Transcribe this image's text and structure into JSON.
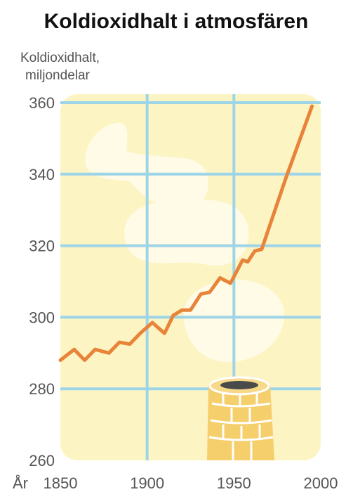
{
  "chart_data": {
    "type": "line",
    "title": "Koldioxidhalt i atmosfären",
    "ylabel_lines": [
      "Koldioxidhalt,",
      "miljondelar"
    ],
    "xlabel": "År",
    "xlim": [
      1850,
      2000
    ],
    "ylim": [
      260,
      360
    ],
    "xticks": [
      1850,
      1900,
      1950,
      2000
    ],
    "yticks": [
      260,
      280,
      300,
      320,
      340,
      360
    ],
    "grid": true,
    "series": [
      {
        "x": [
          1850,
          1858,
          1864,
          1870,
          1878,
          1884,
          1890,
          1896,
          1903,
          1910,
          1915,
          1920,
          1925,
          1931,
          1936,
          1942,
          1948,
          1955,
          1958,
          1962,
          1966,
          1980,
          1995
        ],
        "y": [
          288,
          291,
          288,
          291,
          290,
          293,
          292.5,
          295.5,
          298.5,
          295.5,
          300.5,
          302,
          302,
          306.5,
          307,
          311,
          309.5,
          316,
          315.5,
          318.5,
          319,
          339,
          359
        ]
      }
    ],
    "colors": {
      "background": "#fdf4c4",
      "grid": "#9ed4e8",
      "line": "#e8843a",
      "clouds": "#fffbe6",
      "chimney": "#f5cf6c",
      "chimney_mortar": "#ffffff",
      "chimney_opening": "#4a4a4a"
    }
  }
}
